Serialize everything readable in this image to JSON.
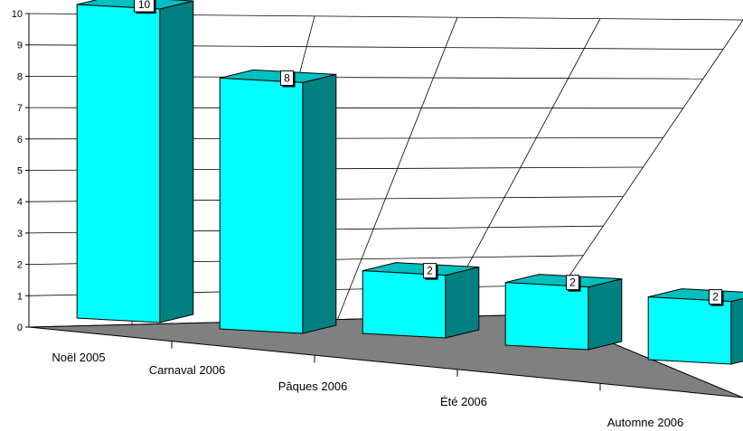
{
  "chart_data": {
    "type": "bar",
    "title": "",
    "xlabel": "",
    "ylabel": "",
    "categories": [
      "Noël 2005",
      "Carnaval 2006",
      "Pâques 2006",
      "Été 2006",
      "Automne 2006"
    ],
    "values": [
      10,
      8,
      2,
      2,
      2
    ],
    "data_labels": [
      "10",
      "8",
      "2",
      "2",
      "2"
    ],
    "ylim": [
      0,
      10
    ],
    "yticks": [
      "0",
      "1",
      "2",
      "3",
      "4",
      "5",
      "6",
      "7",
      "8",
      "9",
      "10"
    ],
    "grid": true,
    "three_d": true,
    "colors": {
      "bar_front": "#00FFFF",
      "bar_side": "#008080",
      "bar_top": "#00BFBF",
      "floor": "#808080",
      "grid": "#000000",
      "label_box": "#FFFFFF"
    }
  }
}
